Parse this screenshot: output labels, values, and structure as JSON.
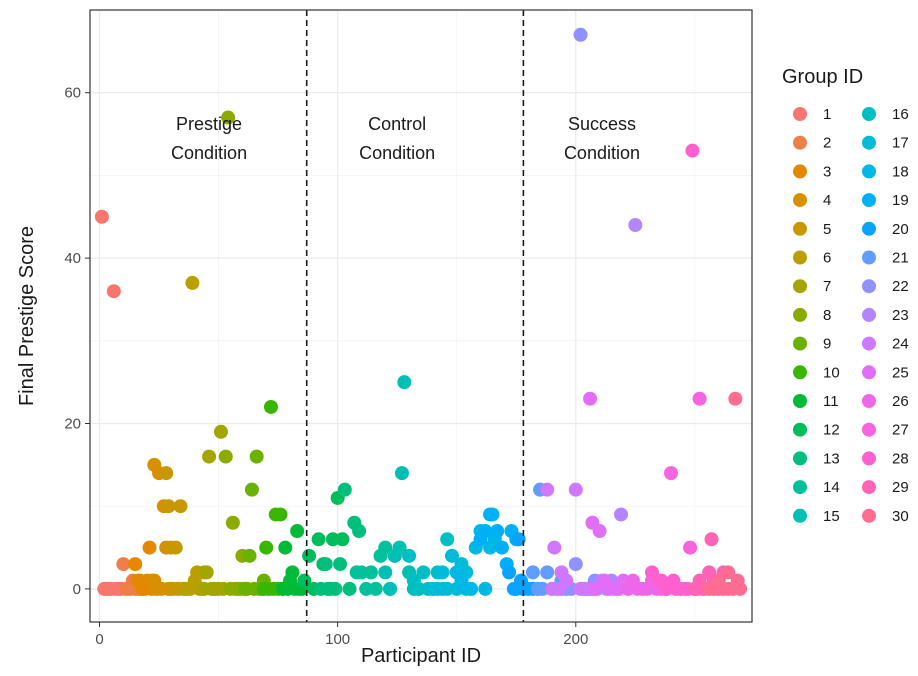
{
  "chart_data": {
    "type": "scatter",
    "title": "",
    "xlabel": "Participant ID",
    "ylabel": "Final Prestige Score",
    "xlim": [
      -4,
      274
    ],
    "ylim": [
      -4,
      70
    ],
    "x_ticks": [
      0,
      100,
      200
    ],
    "y_ticks": [
      0,
      20,
      40,
      60
    ],
    "x_minor": [
      50,
      150,
      250
    ],
    "y_minor": [
      10,
      30,
      50
    ],
    "grid": true,
    "legend": {
      "title": "Group ID",
      "position": "right",
      "columns": 2
    },
    "vlines": [
      {
        "x": 87,
        "style": "dashed"
      },
      {
        "x": 178,
        "style": "dashed"
      }
    ],
    "annotations": [
      {
        "lines": [
          "Prestige",
          "Condition"
        ],
        "x": 46,
        "y": 55.5
      },
      {
        "lines": [
          "Control",
          "Condition"
        ],
        "x": 125,
        "y": 55.5
      },
      {
        "lines": [
          "Success",
          "Condition"
        ],
        "x": 211,
        "y": 55.5
      }
    ],
    "series": [
      {
        "name": "1",
        "color": "#F8766D",
        "x": [
          1,
          2,
          3,
          4,
          5,
          6,
          7,
          8,
          9
        ],
        "y": [
          45,
          0,
          0,
          0,
          0,
          36,
          0,
          0,
          0
        ]
      },
      {
        "name": "2",
        "color": "#EF7F49",
        "x": [
          10,
          11,
          12,
          13,
          14,
          15,
          16,
          17,
          18
        ],
        "y": [
          3,
          0,
          0,
          0,
          1,
          0,
          0,
          0,
          0
        ]
      },
      {
        "name": "3",
        "color": "#E58700",
        "x": [
          15,
          16,
          17,
          18,
          19,
          20,
          21,
          22,
          23
        ],
        "y": [
          3,
          1,
          1,
          0,
          0,
          1,
          5,
          0,
          1
        ]
      },
      {
        "name": "4",
        "color": "#D89000",
        "x": [
          22,
          23,
          24,
          25,
          26,
          27,
          28,
          29,
          30
        ],
        "y": [
          1,
          15,
          0,
          14,
          0,
          10,
          5,
          0,
          0
        ]
      },
      {
        "name": "5",
        "color": "#C99800",
        "x": [
          28,
          29,
          30,
          31,
          32,
          33,
          34,
          35,
          36
        ],
        "y": [
          14,
          10,
          5,
          0,
          5,
          0,
          10,
          0,
          0
        ]
      },
      {
        "name": "6",
        "color": "#B9A000",
        "x": [
          36,
          37,
          38,
          39,
          40,
          41,
          42,
          43,
          44
        ],
        "y": [
          0,
          0,
          0,
          37,
          1,
          2,
          0,
          0,
          2
        ]
      },
      {
        "name": "7",
        "color": "#A3A500",
        "x": [
          44,
          45,
          46,
          47,
          48,
          49,
          50,
          51,
          52
        ],
        "y": [
          0,
          2,
          16,
          0,
          0,
          0,
          0,
          19,
          0
        ]
      },
      {
        "name": "8",
        "color": "#8BAB00",
        "x": [
          53,
          54,
          55,
          56,
          57,
          58,
          59,
          60,
          61
        ],
        "y": [
          16,
          57,
          0,
          8,
          0,
          0,
          0,
          4,
          0
        ]
      },
      {
        "name": "9",
        "color": "#6BB100",
        "x": [
          61,
          62,
          63,
          64,
          65,
          66,
          67,
          68,
          69
        ],
        "y": [
          0,
          0,
          4,
          12,
          0,
          16,
          0,
          0,
          1
        ]
      },
      {
        "name": "10",
        "color": "#39B600",
        "x": [
          69,
          70,
          71,
          72,
          73,
          74,
          75,
          76,
          77
        ],
        "y": [
          0,
          5,
          0,
          22,
          0,
          9,
          0,
          9,
          0
        ]
      },
      {
        "name": "11",
        "color": "#00BA38",
        "x": [
          77,
          78,
          79,
          80,
          81,
          82,
          83,
          84,
          85
        ],
        "y": [
          0,
          5,
          0,
          1,
          2,
          0,
          7,
          0,
          0
        ]
      },
      {
        "name": "12",
        "color": "#00BD5C",
        "x": [
          86,
          88,
          90,
          92,
          94,
          96,
          98,
          100,
          102
        ],
        "y": [
          1,
          4,
          0,
          6,
          3,
          0,
          6,
          11,
          6
        ]
      },
      {
        "name": "13",
        "color": "#00BF7D",
        "x": [
          93,
          95,
          97,
          99,
          101,
          103,
          105,
          107,
          109
        ],
        "y": [
          0,
          3,
          0,
          0,
          3,
          12,
          0,
          8,
          7
        ]
      },
      {
        "name": "14",
        "color": "#00C19A",
        "x": [
          108,
          110,
          112,
          114,
          116,
          118,
          120,
          122,
          124
        ],
        "y": [
          2,
          2,
          0,
          2,
          0,
          4,
          5,
          0,
          4
        ]
      },
      {
        "name": "15",
        "color": "#00C0B5",
        "x": [
          120,
          122,
          124,
          126,
          127,
          128,
          130,
          132,
          134
        ],
        "y": [
          2,
          0,
          4,
          5,
          14,
          25,
          2,
          0,
          0
        ]
      },
      {
        "name": "16",
        "color": "#00BFC4",
        "x": [
          130,
          132,
          134,
          136,
          138,
          140,
          142,
          144,
          146
        ],
        "y": [
          4,
          1,
          0,
          2,
          0,
          0,
          2,
          0,
          6
        ]
      },
      {
        "name": "17",
        "color": "#00BCD8",
        "x": [
          140,
          142,
          144,
          146,
          148,
          150,
          152,
          154,
          156
        ],
        "y": [
          0,
          0,
          2,
          0,
          4,
          0,
          3,
          2,
          0
        ]
      },
      {
        "name": "18",
        "color": "#00B8E5",
        "x": [
          150,
          152,
          154,
          156,
          158,
          160,
          162,
          164,
          166
        ],
        "y": [
          2,
          1,
          0,
          0,
          5,
          7,
          0,
          5,
          6
        ]
      },
      {
        "name": "19",
        "color": "#00B0F6",
        "x": [
          160,
          162,
          164,
          165,
          167,
          169,
          171,
          173,
          175
        ],
        "y": [
          6,
          7,
          9,
          9,
          7,
          5,
          3,
          7,
          6
        ]
      },
      {
        "name": "20",
        "color": "#0AA3FF",
        "x": [
          172,
          174,
          175,
          176,
          177,
          178,
          180,
          182,
          184
        ],
        "y": [
          2,
          0,
          0,
          6,
          1,
          0,
          0,
          0,
          0
        ]
      },
      {
        "name": "21",
        "color": "#619CFF",
        "x": [
          182,
          184,
          185,
          186,
          188,
          190,
          192,
          194,
          196
        ],
        "y": [
          2,
          0,
          12,
          0,
          2,
          0,
          0,
          1,
          0
        ]
      },
      {
        "name": "22",
        "color": "#8F91FF",
        "x": [
          194,
          196,
          198,
          200,
          202,
          203,
          204,
          206,
          208
        ],
        "y": [
          0,
          1,
          0,
          3,
          67,
          0,
          0,
          0,
          1
        ]
      },
      {
        "name": "23",
        "color": "#B385FF",
        "x": [
          205,
          207,
          209,
          211,
          213,
          215,
          217,
          219,
          225
        ],
        "y": [
          0,
          0,
          0,
          1,
          0,
          1,
          0,
          9,
          44
        ]
      },
      {
        "name": "24",
        "color": "#CF78FF",
        "x": [
          188,
          190,
          191,
          193,
          194,
          196,
          200,
          202,
          204
        ],
        "y": [
          12,
          0,
          5,
          0,
          2,
          1,
          12,
          0,
          0
        ]
      },
      {
        "name": "25",
        "color": "#E26EF7",
        "x": [
          206,
          207,
          208,
          210,
          212,
          214,
          216,
          218,
          220
        ],
        "y": [
          23,
          8,
          0,
          7,
          1,
          0,
          0,
          0,
          1
        ]
      },
      {
        "name": "26",
        "color": "#EE67EB",
        "x": [
          222,
          224,
          226,
          228,
          230,
          232,
          234,
          236,
          238
        ],
        "y": [
          0,
          1,
          0,
          0,
          0,
          1,
          0,
          0,
          0
        ]
      },
      {
        "name": "27",
        "color": "#F863DF",
        "x": [
          236,
          238,
          240,
          242,
          244,
          246,
          248,
          250,
          252
        ],
        "y": [
          1,
          0,
          14,
          0,
          0,
          0,
          5,
          0,
          23
        ]
      },
      {
        "name": "28",
        "color": "#FE61CF",
        "x": [
          232,
          235,
          238,
          241,
          244,
          247,
          249,
          251,
          253
        ],
        "y": [
          2,
          1,
          0,
          1,
          0,
          0,
          53,
          0,
          0
        ]
      },
      {
        "name": "29",
        "color": "#FF63B6",
        "x": [
          250,
          252,
          254,
          256,
          257,
          258,
          260,
          262,
          264
        ],
        "y": [
          0,
          1,
          0,
          2,
          6,
          1,
          0,
          2,
          0
        ]
      },
      {
        "name": "30",
        "color": "#FF6C91",
        "x": [
          256,
          258,
          260,
          262,
          264,
          266,
          267,
          268,
          269
        ],
        "y": [
          0,
          0,
          1,
          0,
          2,
          0,
          23,
          1,
          0
        ]
      }
    ]
  }
}
